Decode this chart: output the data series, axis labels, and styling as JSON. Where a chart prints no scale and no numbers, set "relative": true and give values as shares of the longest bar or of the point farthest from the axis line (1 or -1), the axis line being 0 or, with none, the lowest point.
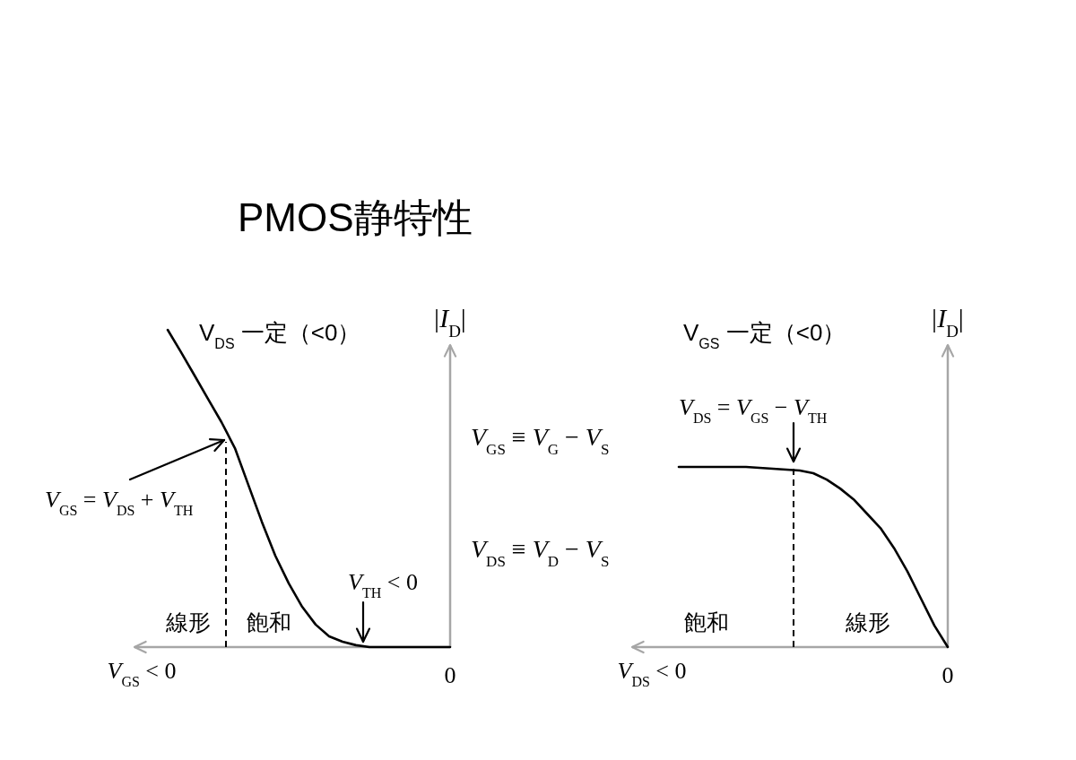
{
  "chart_data": [
    {
      "type": "line",
      "title": "PMOS静特性",
      "subtitle": "V$_{DS}$ 一定（<0）",
      "xlabel": "V$_{GS}$ < 0",
      "ylabel": "|I$_{D}$|",
      "relative": true,
      "categories": [
        null,
        null,
        null,
        null,
        null,
        null,
        null,
        null,
        null,
        null,
        null,
        null,
        null,
        null,
        null,
        null,
        null,
        null,
        null,
        null,
        null,
        null
      ],
      "series": [
        {
          "color": "#000000",
          "values": [
            1.0,
            0.929,
            0.856,
            0.782,
            0.709,
            0.627,
            0.511,
            0.395,
            0.288,
            0.201,
            0.127,
            0.071,
            0.034,
            0.017,
            0.006,
            0,
            0,
            0,
            0,
            0,
            0,
            0
          ]
        }
      ],
      "annotations": [
        "V$_{GS}$ = V$_{DS}$ + V$_{TH}$",
        "V$_{TH}$ < 0",
        "線形",
        "飽和",
        "0",
        "V$_{GS}$ ≡ V$_{G}$ − V$_{S}$",
        "V$_{DS}$ ≡ V$_{D}$ − V$_{S}$"
      ]
    },
    {
      "type": "line",
      "subtitle": "V$_{GS}$ 一定（<0）",
      "xlabel": "V$_{DS}$ < 0",
      "ylabel": "|I$_{D}$|",
      "relative": true,
      "categories": [
        null,
        null,
        null,
        null,
        null,
        null,
        null,
        null,
        null,
        null,
        null,
        null,
        null,
        null,
        null,
        null,
        null,
        null,
        null,
        null,
        null
      ],
      "series": [
        {
          "color": "#000000",
          "values": [
            1,
            1,
            1,
            1,
            1,
            1,
            0.995,
            0.99,
            0.985,
            0.98,
            0.965,
            0.93,
            0.88,
            0.82,
            0.74,
            0.66,
            0.55,
            0.42,
            0.27,
            0.12,
            0
          ]
        }
      ],
      "annotations": [
        "V$_{DS}$ = V$_{GS}$ − V$_{TH}$",
        "飽和",
        "線形",
        "0"
      ]
    }
  ]
}
